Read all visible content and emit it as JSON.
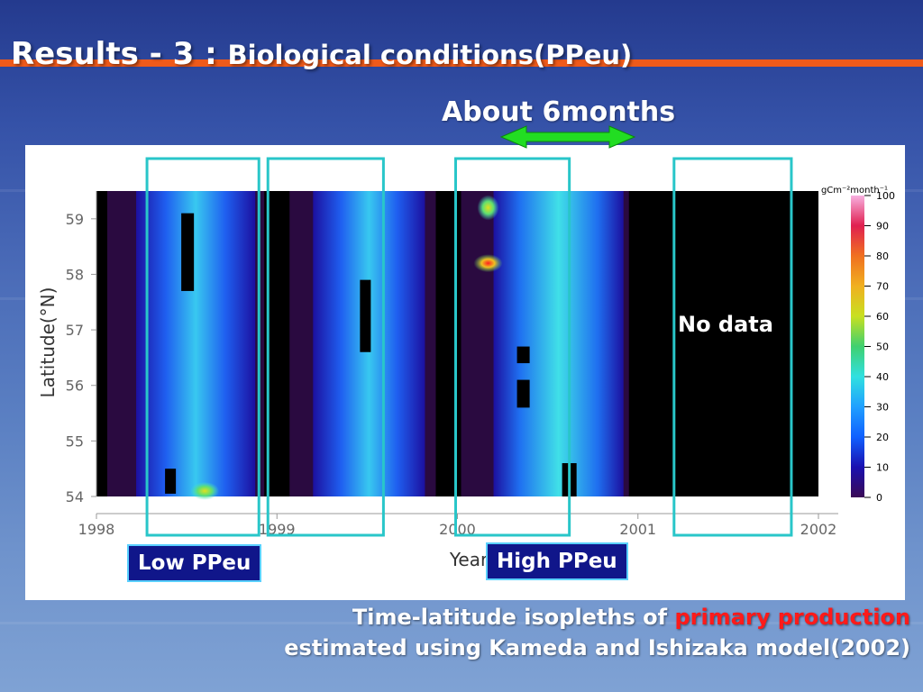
{
  "slide": {
    "title_main": "Results - 3 : ",
    "title_sub": "Biological conditions(PPeu)",
    "about_label": "About 6months",
    "no_data_label": "No data",
    "low_label": "Low PPeu",
    "high_label": "High PPeu",
    "caption_line1_before": "Time-latitude isopleths of ",
    "caption_line1_highlight": "primary production",
    "caption_line2": "estimated using Kameda and Ishizaka model(2002)",
    "colors": {
      "title_bar": "#ef5a1a",
      "arrow": "#22dd22",
      "box_outline": "#29c6c9",
      "label_bg": "#10168a",
      "highlight": "#ff1a1a"
    }
  },
  "chart_data": {
    "type": "heatmap",
    "title": "",
    "xlabel": "Year",
    "ylabel": "Latitude(°N)",
    "x_ticks": [
      "1998",
      "1999",
      "2000",
      "2001",
      "2002"
    ],
    "y_ticks": [
      "54",
      "55",
      "56",
      "57",
      "58",
      "59"
    ],
    "xlim": [
      1998,
      2002
    ],
    "ylim": [
      54,
      59.5
    ],
    "no_data_range": [
      2000.95,
      2002
    ],
    "colorbar": {
      "unit": "gCm⁻²month⁻¹",
      "ticks": [
        "100",
        "90",
        "80",
        "70",
        "60",
        "50",
        "40",
        "30",
        "20",
        "10",
        "0"
      ],
      "range": [
        0,
        100
      ]
    },
    "highlight_boxes": [
      {
        "x_range": [
          1998.28,
          1998.9
        ],
        "label": "Low PPeu"
      },
      {
        "x_range": [
          1998.95,
          1999.59
        ]
      },
      {
        "x_range": [
          1999.99,
          2000.62
        ],
        "label": "High PPeu"
      },
      {
        "x_range": [
          2001.2,
          2001.85
        ]
      }
    ],
    "approx_peaks": [
      {
        "year": 1998.6,
        "lat": 54.1,
        "value": 50
      },
      {
        "year": 2000.17,
        "lat": 58.2,
        "value": 80
      },
      {
        "year": 2000.17,
        "lat": 59.2,
        "value": 65
      }
    ]
  }
}
